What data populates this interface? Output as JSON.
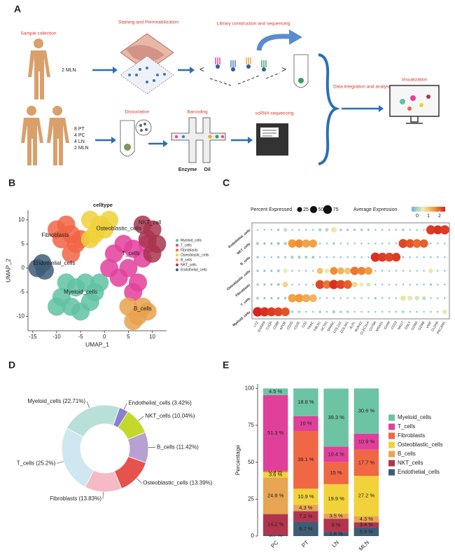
{
  "diagram": {
    "label": "A",
    "sample_collection": "Sample collection",
    "top_sample": "2 MLN",
    "staining": "Staining and Permeabilization",
    "library": "Library construction and sequencing",
    "integration": "Data integration and analysis",
    "visualization": "Visualization",
    "bottom_samples": [
      "8 PT",
      "4 PC",
      "4 LN",
      "2 MLN"
    ],
    "dissociation": "Dissociation",
    "barcoding": "Barcoding",
    "enzyme": "Enzyme",
    "oil": "Oil",
    "scrna": "scRNA sequencing"
  },
  "chart_data": [
    {
      "type": "scatter",
      "panel_label": "B",
      "title": "celltype",
      "x_label": "UMAP_1",
      "y_label": "UMAP_2",
      "xlim": [
        -16,
        13
      ],
      "ylim": [
        -13,
        12
      ],
      "xticks": [
        -15,
        -10,
        -5,
        0,
        5,
        10
      ],
      "yticks": [
        -10,
        -5,
        0,
        5,
        10
      ],
      "series": [
        {
          "name": "Myeloid_cells",
          "color": "#5fc2a2",
          "x": [
            -9,
            -7,
            -5,
            -3,
            -6,
            -8,
            -4,
            -2,
            -10,
            -1
          ],
          "y": [
            -6,
            -8,
            -9,
            -7,
            -4,
            -3,
            -3,
            -5,
            -8,
            -3
          ]
        },
        {
          "name": "T_cells",
          "color": "#e2409b",
          "x": [
            2,
            4,
            6,
            8,
            5,
            3,
            7,
            1,
            6,
            9
          ],
          "y": [
            3,
            5,
            4,
            2,
            0,
            -2,
            -3,
            0,
            -5,
            5
          ]
        },
        {
          "name": "Fibroblasts",
          "color": "#f16544",
          "x": [
            -10,
            -8,
            -7,
            -9,
            -6,
            -7,
            -5
          ],
          "y": [
            8,
            9,
            7,
            6,
            5,
            3,
            6
          ]
        },
        {
          "name": "Osteoblastic_cells",
          "color": "#f0d03a",
          "x": [
            -3,
            -1,
            -2,
            0,
            -3,
            1
          ],
          "y": [
            10,
            9,
            7,
            8,
            6,
            10
          ]
        },
        {
          "name": "B_cells",
          "color": "#e8a24e",
          "x": [
            5,
            7,
            9,
            6,
            8
          ],
          "y": [
            -8,
            -10,
            -9,
            -11,
            -8
          ]
        },
        {
          "name": "NKT_cells",
          "color": "#a8354f",
          "x": [
            8,
            10,
            9,
            11,
            10
          ],
          "y": [
            9,
            8,
            6,
            5,
            3
          ]
        },
        {
          "name": "Endothelial_cells",
          "color": "#3e5c78",
          "x": [
            -13,
            -14,
            -12.5
          ],
          "y": [
            1,
            0,
            -0.5
          ]
        }
      ],
      "annotations": [
        {
          "text": "Osteoblastic_cells",
          "x": 3,
          "y": 8.2
        },
        {
          "text": "NKT_cell",
          "x": 9.5,
          "y": 9.4
        },
        {
          "text": "Fibroblasts",
          "x": -10.3,
          "y": 6.8
        },
        {
          "text": "T_cells",
          "x": 5.5,
          "y": 3
        },
        {
          "text": "Endothelial_cells",
          "x": -10.5,
          "y": 1
        },
        {
          "text": "Myeloid_cells",
          "x": -5,
          "y": -5
        },
        {
          "text": "B_cells",
          "x": 8,
          "y": -8.5
        }
      ]
    },
    {
      "type": "dotplot",
      "panel_label": "C",
      "genes": [
        "LYZ",
        "S100A9",
        "C1QA",
        "CD68",
        "APOE",
        "CD3D",
        "CD3E",
        "CD2",
        "TRAC",
        "FBLN1",
        "ACTA2",
        "SPARC",
        "COL1A1",
        "COL3A1",
        "ALPL",
        "RUNX2",
        "CLEC11A",
        "CD79A",
        "MS4A1",
        "IGHM",
        "CD19",
        "NKG7",
        "GNLY",
        "GZMA",
        "GZMB",
        "VWF",
        "CLDN5",
        "PECAM1"
      ],
      "rows": [
        "Endothelial_cells",
        "NKT_cells",
        "B_cells",
        "Osteoblastic_cells",
        "Fibroblasts",
        "T_cells",
        "Myeloid_cells"
      ],
      "pct": [
        [
          3,
          3,
          3,
          5,
          15,
          3,
          3,
          3,
          3,
          10,
          12,
          30,
          5,
          5,
          5,
          5,
          5,
          3,
          3,
          3,
          3,
          5,
          3,
          3,
          3,
          85,
          80,
          85
        ],
        [
          10,
          5,
          5,
          8,
          10,
          70,
          70,
          65,
          65,
          3,
          3,
          5,
          3,
          3,
          3,
          3,
          3,
          3,
          3,
          3,
          3,
          80,
          75,
          75,
          70,
          3,
          3,
          3
        ],
        [
          5,
          3,
          3,
          5,
          5,
          10,
          10,
          8,
          8,
          3,
          3,
          3,
          3,
          3,
          3,
          3,
          3,
          85,
          80,
          80,
          75,
          5,
          3,
          3,
          3,
          3,
          3,
          3
        ],
        [
          5,
          5,
          5,
          8,
          20,
          3,
          3,
          3,
          3,
          40,
          20,
          60,
          50,
          45,
          70,
          65,
          60,
          3,
          3,
          3,
          3,
          3,
          3,
          3,
          3,
          20,
          3,
          3
        ],
        [
          5,
          5,
          5,
          8,
          30,
          3,
          3,
          3,
          3,
          80,
          70,
          85,
          80,
          75,
          30,
          20,
          15,
          3,
          3,
          3,
          3,
          3,
          3,
          3,
          3,
          5,
          3,
          3
        ],
        [
          8,
          5,
          5,
          5,
          5,
          70,
          70,
          65,
          60,
          3,
          3,
          3,
          3,
          3,
          3,
          3,
          3,
          5,
          3,
          3,
          3,
          30,
          25,
          20,
          15,
          3,
          3,
          3
        ],
        [
          90,
          85,
          80,
          80,
          75,
          5,
          5,
          3,
          3,
          5,
          3,
          10,
          5,
          5,
          3,
          3,
          3,
          3,
          3,
          3,
          3,
          5,
          3,
          3,
          3,
          3,
          3,
          20
        ]
      ],
      "expr": [
        [
          -0.3,
          -0.3,
          -0.3,
          -0.2,
          0.2,
          -0.3,
          -0.3,
          -0.3,
          -0.3,
          0,
          0.1,
          0.6,
          -0.2,
          -0.2,
          -0.2,
          -0.2,
          -0.2,
          -0.3,
          -0.3,
          -0.3,
          -0.3,
          -0.2,
          -0.3,
          -0.3,
          -0.3,
          2.3,
          2.4,
          2.3
        ],
        [
          0,
          -0.3,
          -0.3,
          -0.2,
          0,
          1.5,
          1.6,
          1.4,
          1.4,
          -0.3,
          -0.3,
          -0.2,
          -0.3,
          -0.3,
          -0.3,
          -0.3,
          -0.3,
          -0.3,
          -0.3,
          -0.3,
          -0.3,
          2.2,
          2.1,
          1.9,
          2.0,
          -0.3,
          -0.3,
          -0.3
        ],
        [
          -0.2,
          -0.3,
          -0.3,
          -0.2,
          -0.2,
          0,
          0,
          -0.1,
          -0.1,
          -0.3,
          -0.3,
          -0.3,
          -0.3,
          -0.3,
          -0.3,
          -0.3,
          -0.3,
          2.4,
          2.3,
          2.2,
          2.3,
          -0.2,
          -0.3,
          -0.3,
          -0.3,
          -0.3,
          -0.3,
          -0.3
        ],
        [
          -0.2,
          -0.2,
          -0.2,
          -0.1,
          0.5,
          -0.3,
          -0.3,
          -0.3,
          -0.3,
          1.0,
          0.6,
          1.6,
          1.2,
          1.0,
          1.8,
          1.7,
          1.5,
          -0.3,
          -0.3,
          -0.3,
          -0.3,
          -0.3,
          -0.3,
          -0.3,
          -0.3,
          0.6,
          -0.3,
          -0.3
        ],
        [
          -0.2,
          -0.2,
          -0.2,
          -0.1,
          0.8,
          -0.3,
          -0.3,
          -0.3,
          -0.3,
          2.2,
          1.8,
          2.4,
          2.2,
          2.0,
          0.8,
          0.5,
          0.3,
          -0.3,
          -0.3,
          -0.3,
          -0.3,
          -0.3,
          -0.3,
          -0.3,
          -0.3,
          -0.2,
          -0.3,
          -0.3
        ],
        [
          0,
          -0.2,
          -0.2,
          -0.2,
          -0.2,
          1.4,
          1.5,
          1.3,
          1.2,
          -0.3,
          -0.3,
          -0.3,
          -0.3,
          -0.3,
          -0.3,
          -0.3,
          -0.3,
          -0.2,
          -0.3,
          -0.3,
          -0.3,
          0.6,
          0.4,
          0.3,
          0.2,
          -0.3,
          -0.3,
          -0.3
        ],
        [
          2.5,
          2.4,
          2.3,
          2.2,
          2.1,
          -0.2,
          -0.2,
          -0.3,
          -0.3,
          -0.2,
          -0.3,
          0,
          -0.2,
          -0.2,
          -0.3,
          -0.3,
          -0.3,
          -0.3,
          -0.3,
          -0.3,
          -0.3,
          -0.2,
          -0.3,
          -0.3,
          -0.3,
          -0.3,
          -0.3,
          0.4
        ]
      ],
      "size_title": "Percent Expressed",
      "size_values": [
        25,
        50,
        75
      ],
      "color_title": "Average Expression",
      "clim": [
        -0.5,
        2.5
      ],
      "color_ticks": [
        0,
        1,
        2
      ],
      "colors": [
        "#6bb6dc",
        "#f1edb0",
        "#f29a3a",
        "#d7231e"
      ]
    },
    {
      "type": "donut",
      "panel_label": "D",
      "categories": [
        "Myeloid_cells",
        "Endothelial_cells",
        "NKT_cells",
        "B_cells",
        "Osteoblastic_cells",
        "Fibroblasts",
        "T_cells"
      ],
      "values": [
        22.71,
        3.42,
        10.04,
        11.42,
        13.39,
        13.83,
        25.2
      ],
      "value_labels": [
        "Myeloid_cells (22.71%)",
        "Endothelial_cells (3.42%)",
        "NKT_cells (10.04%)",
        "B_cells (11.42%)",
        "Osteoblastic_cells (13.39%)",
        "Fibroblasts (13.83%)",
        "T_cells (25.2%)"
      ],
      "colors": [
        "#b9e0d8",
        "#8b80cc",
        "#c4d82c",
        "#b7a0d2",
        "#e5534c",
        "#f5bac6",
        "#cfe7f0"
      ]
    },
    {
      "type": "bar",
      "stacked": true,
      "panel_label": "E",
      "y_label": "Percentage",
      "categories": [
        "PC",
        "PT",
        "LN",
        "MLN"
      ],
      "ylim": [
        0,
        103
      ],
      "yticks": [
        0,
        25,
        50,
        75,
        100
      ],
      "series": [
        {
          "name": "Endothelial_cells",
          "color": "#3e5c75",
          "values": [
            0.7,
            9.7,
            2.8,
            5.9
          ],
          "value_labels": [
            "0.7 %",
            "9.7 %",
            "2.8 %",
            "5.9 %"
          ]
        },
        {
          "name": "NKT_cells",
          "color": "#b2354d",
          "values": [
            14.2,
            7.2,
            9,
            3.4
          ],
          "value_labels": [
            "14.2 %",
            "7.2 %",
            "9 %",
            "3.4 %"
          ]
        },
        {
          "name": "B_cells",
          "color": "#e8a552",
          "values": [
            24.8,
            4.3,
            3.5,
            4.3
          ],
          "value_labels": [
            "24.8 %",
            "4.3 %",
            "3.5 %",
            "4.3 %"
          ]
        },
        {
          "name": "Osteoblastic_cells",
          "color": "#f2d23a",
          "values": [
            3.6,
            10.9,
            19.9,
            27.2
          ],
          "value_labels": [
            "3.6 %",
            "10.9 %",
            "19.9 %",
            "27.2 %"
          ]
        },
        {
          "name": "Fibroblasts",
          "color": "#f06744",
          "values": [
            0.9,
            39.1,
            15,
            17.7
          ],
          "value_labels": [
            "0.9 %",
            "39.1 %",
            "15 %",
            "17.7 %"
          ]
        },
        {
          "name": "T_cells",
          "color": "#e0409a",
          "values": [
            51.3,
            10,
            10.4,
            10.9
          ],
          "value_labels": [
            "51.3 %",
            "10 %",
            "10.4 %",
            "10.9 %"
          ]
        },
        {
          "name": "Myeloid_cells",
          "color": "#6cc4a4",
          "values": [
            4.5,
            18.8,
            39.3,
            30.6
          ],
          "value_labels": [
            "4.5 %",
            "18.8 %",
            "39.3 %",
            "30.6 %"
          ]
        }
      ]
    }
  ]
}
